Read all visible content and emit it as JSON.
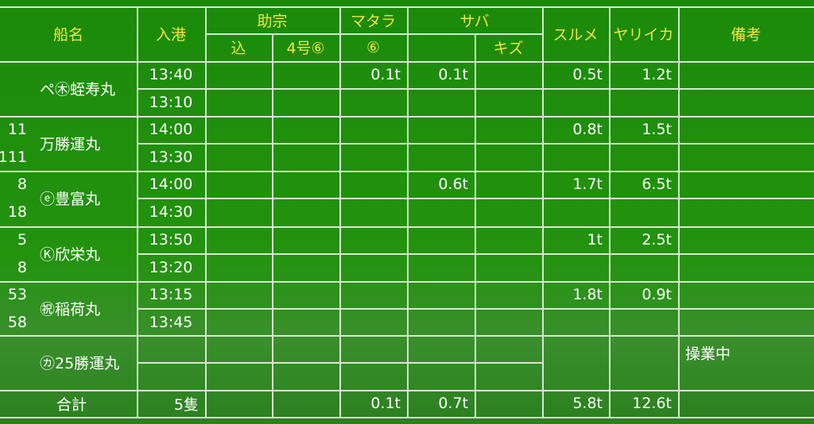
{
  "headers": {
    "ship": "船名",
    "arrival": "入港",
    "sukemune": "助宗",
    "komi": "込",
    "no4": "4号⑥",
    "madara": "マタラ",
    "madara_sub": "⑥",
    "saba": "サバ",
    "kizu": "キズ",
    "surume": "スルメ",
    "yariika": "ヤリイカ",
    "notes": "備考"
  },
  "rows": [
    {
      "nums": [
        "",
        ""
      ],
      "ship": "ペ㊍蛭寿丸",
      "times": [
        "13:40",
        "13:10"
      ],
      "madara": "0.1t",
      "saba": "0.1t",
      "surume": "0.5t",
      "yariika": "1.2t",
      "note": ""
    },
    {
      "nums": [
        "11",
        "111"
      ],
      "ship": "万勝運丸",
      "times": [
        "14:00",
        "13:30"
      ],
      "madara": "",
      "saba": "",
      "surume": "0.8t",
      "yariika": "1.5t",
      "note": ""
    },
    {
      "nums": [
        "8",
        "18"
      ],
      "ship": "ⓔ豊富丸",
      "times": [
        "14:00",
        "14:30"
      ],
      "madara": "",
      "saba": "0.6t",
      "surume": "1.7t",
      "yariika": "6.5t",
      "note": ""
    },
    {
      "nums": [
        "5",
        "8"
      ],
      "ship": "Ⓚ欣栄丸",
      "times": [
        "13:50",
        "13:20"
      ],
      "madara": "",
      "saba": "",
      "surume": "1t",
      "yariika": "2.5t",
      "note": ""
    },
    {
      "nums": [
        "53",
        "58"
      ],
      "ship": "㊗稲荷丸",
      "times": [
        "13:15",
        "13:45"
      ],
      "madara": "",
      "saba": "",
      "surume": "1.8t",
      "yariika": "0.9t",
      "note": ""
    },
    {
      "nums": [
        "",
        ""
      ],
      "ship": "㋕25勝運丸",
      "times": [
        "",
        ""
      ],
      "madara": "",
      "saba": "",
      "surume": "",
      "yariika": "",
      "note": "操業中"
    }
  ],
  "total": {
    "label": "合計",
    "ships": "5隻",
    "madara": "0.1t",
    "saba": "0.7t",
    "surume": "5.8t",
    "yariika": "12.6t"
  }
}
